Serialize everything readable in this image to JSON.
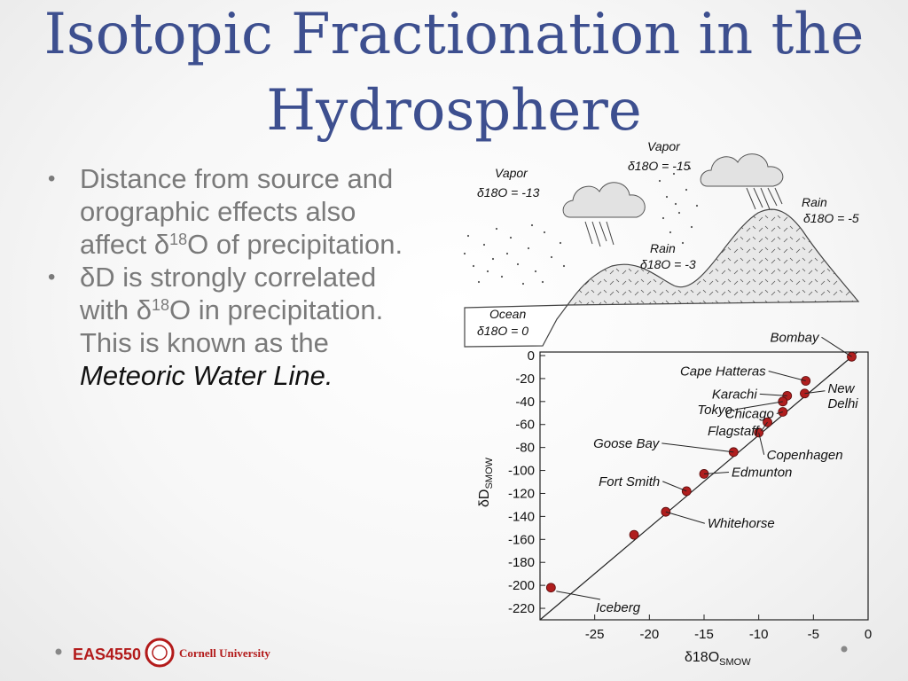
{
  "title": {
    "line1": "Isotopic Fractionation in the",
    "line2": "Hydrosphere"
  },
  "bullets": {
    "b1": {
      "text": "Distance from source and orographic effects also affect δ",
      "sup": "18",
      "rest": "O of precipitation."
    },
    "b2": {
      "pre": "δD is strongly correlated with δ",
      "sup": "18",
      "mid": "O in precipitation. This is known as the ",
      "em": "Meteoric Water Line",
      "end": "."
    }
  },
  "diagram": {
    "vapor_left": {
      "name": "Vapor",
      "value": "δ18O = -13"
    },
    "vapor_top": {
      "name": "Vapor",
      "value": "δ18O = -15"
    },
    "rain_mid": {
      "name": "Rain",
      "value": "δ18O = -3"
    },
    "rain_right": {
      "name": "Rain",
      "value": "δ18O = -5"
    },
    "ocean": {
      "name": "Ocean",
      "value": "δ18O = 0"
    }
  },
  "chart_data": {
    "type": "scatter",
    "xlabel": "δ18O",
    "xlabel_sub": "SMOW",
    "ylabel": "δD",
    "ylabel_sub": "SMOW",
    "xlim": [
      -30,
      0
    ],
    "ylim": [
      -230,
      0
    ],
    "x_ticks": [
      -25,
      -20,
      -15,
      -10,
      -5,
      0
    ],
    "y_ticks": [
      0,
      -20,
      -40,
      -60,
      -80,
      -100,
      -120,
      -140,
      -160,
      -180,
      -200,
      -220
    ],
    "points": [
      {
        "name": "Bombay",
        "x": -1.5,
        "y": -1
      },
      {
        "name": "Cape Hatteras",
        "x": -5.7,
        "y": -22
      },
      {
        "name": "New Delhi",
        "x": -5.8,
        "y": -33
      },
      {
        "name": "Karachi",
        "x": -7.4,
        "y": -35
      },
      {
        "name": "Tokyo",
        "x": -7.8,
        "y": -40
      },
      {
        "name": "Chicago",
        "x": -7.8,
        "y": -49
      },
      {
        "name": "Flagstaff",
        "x": -9.2,
        "y": -58
      },
      {
        "name": "Copenhagen",
        "x": -10,
        "y": -67
      },
      {
        "name": "Goose Bay",
        "x": -12.3,
        "y": -84
      },
      {
        "name": "Edmunton",
        "x": -15,
        "y": -103
      },
      {
        "name": "Fort Smith",
        "x": -16.6,
        "y": -118
      },
      {
        "name": "Whitehorse",
        "x": -18.5,
        "y": -136
      },
      {
        "name": "Iceberg",
        "x": -21.4,
        "y": -156
      },
      {
        "name": "",
        "x": -29,
        "y": -202
      }
    ],
    "line": {
      "x1": -30,
      "y1": -230,
      "x2": -1,
      "y2": 3
    }
  },
  "footer": {
    "course": "EAS4550",
    "university": "Cornell University"
  },
  "colors": {
    "title": "#3d4f8f",
    "points": "#b01e1e",
    "footer_red": "#b31b1b"
  }
}
